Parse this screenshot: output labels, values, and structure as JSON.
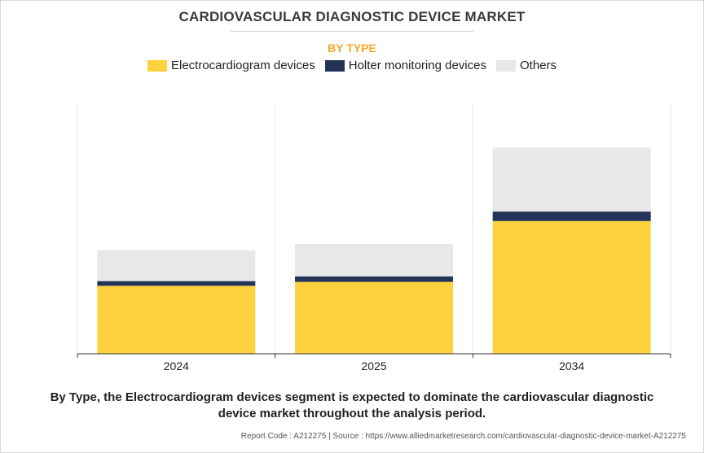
{
  "header": {
    "title": "CARDIOVASCULAR DIAGNOSTIC DEVICE MARKET",
    "subtitle": "BY TYPE"
  },
  "chart_data": {
    "type": "bar",
    "stacked": true,
    "categories": [
      "2024",
      "2025",
      "2034"
    ],
    "series": [
      {
        "name": "Electrocardiogram devices",
        "color": "#FDD23E",
        "values": [
          86,
          91,
          168
        ]
      },
      {
        "name": "Holter monitoring devices",
        "color": "#243458",
        "values": [
          6,
          7,
          12
        ]
      },
      {
        "name": "Others",
        "color": "#E8E8E8",
        "values": [
          39,
          41,
          81
        ]
      }
    ],
    "ylim": [
      0,
      316
    ],
    "grid": "vertical separators",
    "legend_position": "top-center"
  },
  "footer": {
    "caption_line1": "By Type, the Electrocardiogram devices segment is expected to dominate the cardiovascular diagnostic",
    "caption_line2": "device market throughout the analysis period.",
    "source": "Report Code : A212275  |  Source : https://www.alliedmarketresearch.com/cardiovascular-diagnostic-device-market-A212275"
  }
}
